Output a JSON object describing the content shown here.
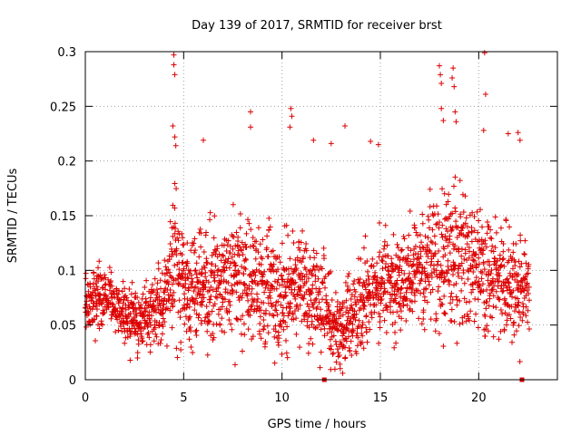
{
  "chart_data": {
    "type": "scatter",
    "title": "Day 139 of 2017, SRMTID for receiver brst",
    "xlabel": "GPS time / hours",
    "ylabel": "SRMTID / TECUs",
    "xlim": [
      0,
      24
    ],
    "ylim": [
      0,
      0.3
    ],
    "x_ticks": [
      "0",
      "5",
      "10",
      "15",
      "20"
    ],
    "x_tick_values": [
      0,
      5,
      10,
      15,
      20
    ],
    "y_ticks": [
      "0",
      "0.05",
      "0.1",
      "0.15",
      "0.2",
      "0.25",
      "0.3"
    ],
    "y_tick_values": [
      0,
      0.05,
      0.1,
      0.15,
      0.2,
      0.25,
      0.3
    ],
    "grid": true,
    "marker": "plus",
    "color": "#dd0000",
    "interval_minutes": 2,
    "time_start": 0.0,
    "time_end": 22.6,
    "baseline_markers_x": [
      12.15,
      22.2
    ],
    "level_profile": {
      "t": [
        0,
        1,
        2,
        3,
        4,
        4.5,
        5,
        6,
        7,
        8,
        9,
        10,
        11,
        12,
        12.5,
        13,
        14,
        15,
        16,
        17,
        18,
        19,
        20,
        21,
        22,
        22.6
      ],
      "center": [
        0.07,
        0.08,
        0.06,
        0.05,
        0.07,
        0.11,
        0.08,
        0.085,
        0.09,
        0.1,
        0.085,
        0.075,
        0.085,
        0.07,
        0.05,
        0.04,
        0.07,
        0.09,
        0.09,
        0.1,
        0.11,
        0.11,
        0.1,
        0.09,
        0.085,
        0.09
      ],
      "spread": [
        0.025,
        0.03,
        0.025,
        0.025,
        0.035,
        0.06,
        0.04,
        0.045,
        0.045,
        0.05,
        0.045,
        0.05,
        0.045,
        0.045,
        0.035,
        0.035,
        0.04,
        0.04,
        0.04,
        0.045,
        0.06,
        0.06,
        0.05,
        0.045,
        0.04,
        0.04
      ]
    },
    "high_outliers": [
      {
        "x": 4.5,
        "y": 0.297
      },
      {
        "x": 4.5,
        "y": 0.288
      },
      {
        "x": 4.55,
        "y": 0.279
      },
      {
        "x": 4.45,
        "y": 0.232
      },
      {
        "x": 4.55,
        "y": 0.222
      },
      {
        "x": 4.6,
        "y": 0.214
      },
      {
        "x": 6.0,
        "y": 0.219
      },
      {
        "x": 8.4,
        "y": 0.245
      },
      {
        "x": 8.4,
        "y": 0.231
      },
      {
        "x": 10.45,
        "y": 0.248
      },
      {
        "x": 10.5,
        "y": 0.241
      },
      {
        "x": 10.4,
        "y": 0.231
      },
      {
        "x": 11.6,
        "y": 0.219
      },
      {
        "x": 12.5,
        "y": 0.216
      },
      {
        "x": 13.2,
        "y": 0.232
      },
      {
        "x": 14.5,
        "y": 0.218
      },
      {
        "x": 14.9,
        "y": 0.215
      },
      {
        "x": 18.0,
        "y": 0.287
      },
      {
        "x": 18.05,
        "y": 0.279
      },
      {
        "x": 18.1,
        "y": 0.271
      },
      {
        "x": 18.7,
        "y": 0.285
      },
      {
        "x": 18.65,
        "y": 0.276
      },
      {
        "x": 18.75,
        "y": 0.268
      },
      {
        "x": 18.1,
        "y": 0.248
      },
      {
        "x": 18.2,
        "y": 0.237
      },
      {
        "x": 18.8,
        "y": 0.245
      },
      {
        "x": 18.85,
        "y": 0.236
      },
      {
        "x": 20.3,
        "y": 0.299
      },
      {
        "x": 20.35,
        "y": 0.261
      },
      {
        "x": 20.25,
        "y": 0.228
      },
      {
        "x": 21.5,
        "y": 0.225
      },
      {
        "x": 22.0,
        "y": 0.226
      },
      {
        "x": 22.1,
        "y": 0.219
      }
    ]
  }
}
